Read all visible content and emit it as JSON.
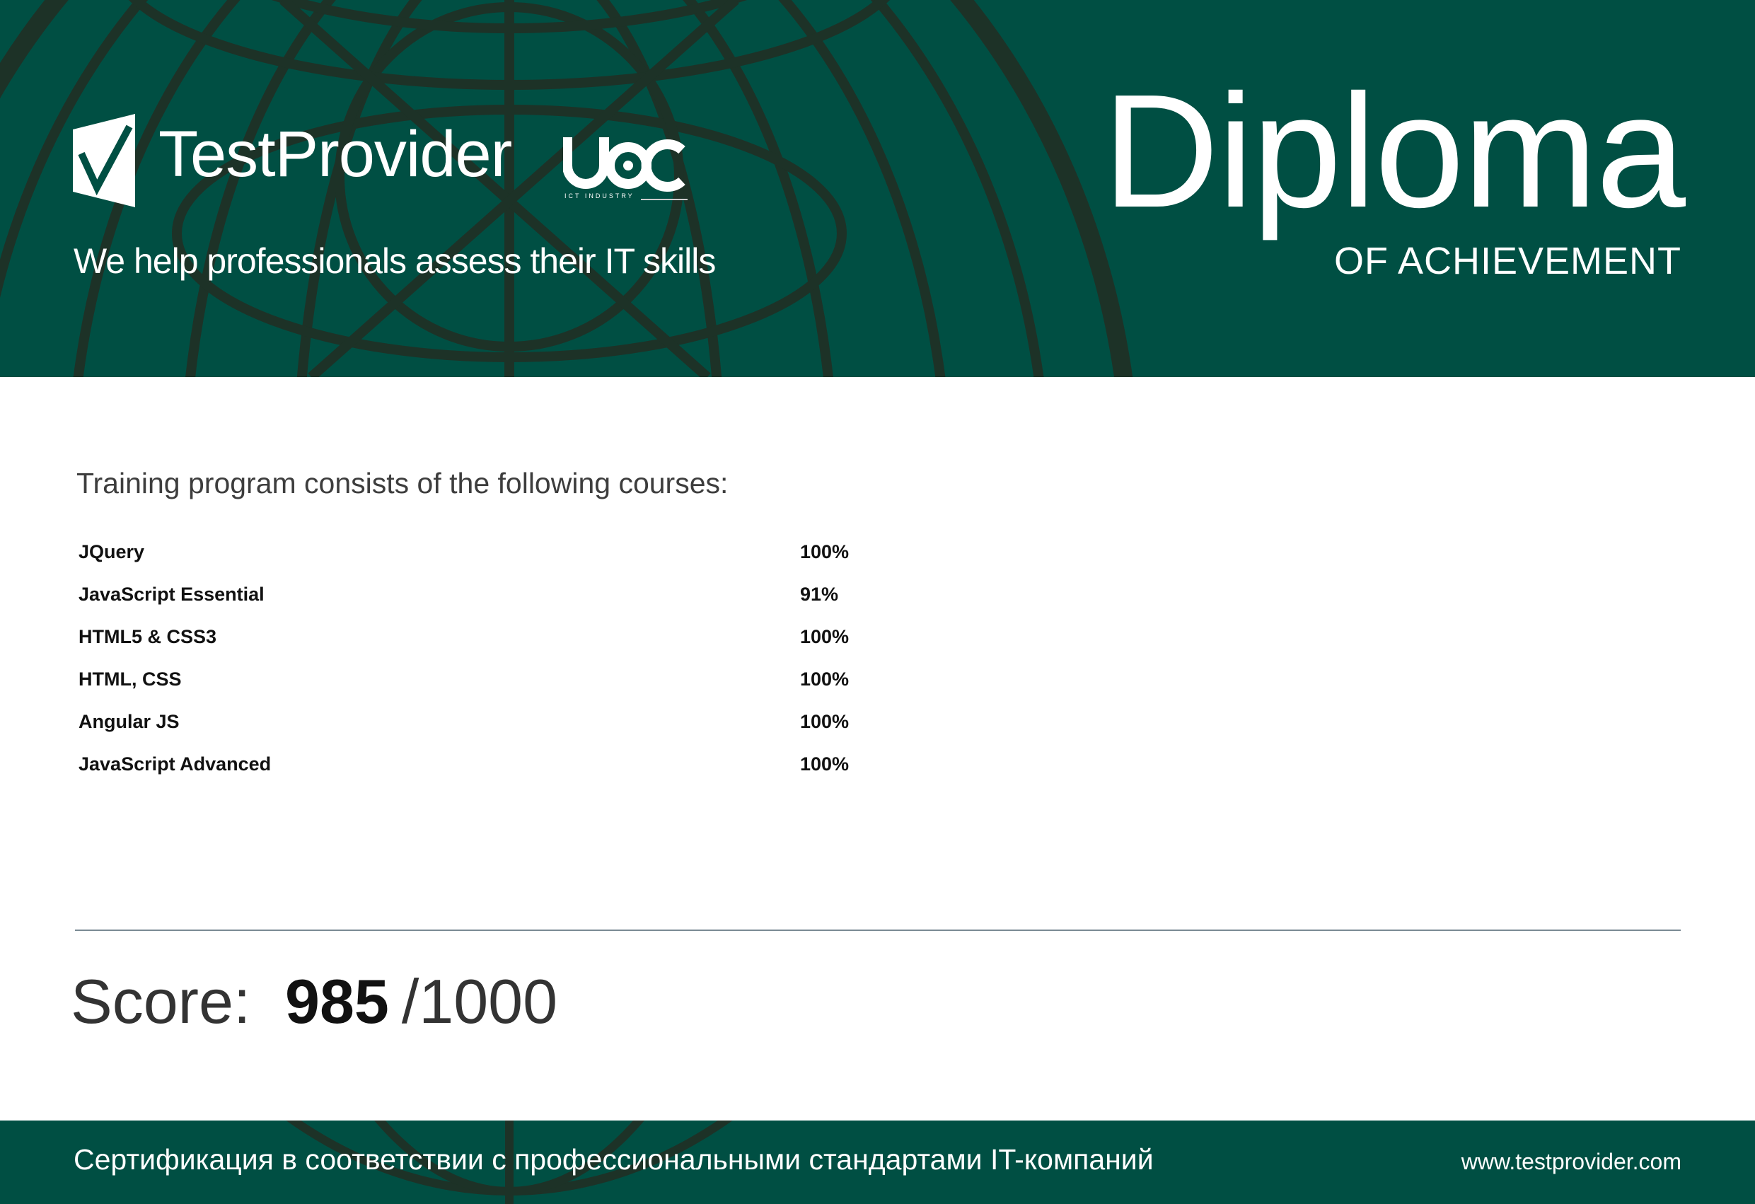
{
  "header": {
    "brand": "TestProvider",
    "partner_logo": "UCC",
    "partner_sub": "ICT INDUSTRY",
    "tagline": "We help professionals assess their IT skills",
    "title": "Diploma",
    "subtitle": "OF ACHIEVEMENT",
    "icons": [
      "checkmark-shield-logo",
      "globe-watermark"
    ]
  },
  "main": {
    "heading": "Training program consists of the following courses:",
    "courses": [
      {
        "name": "JQuery",
        "score": "100%"
      },
      {
        "name": "JavaScript Essential",
        "score": "91%"
      },
      {
        "name": "HTML5 & CSS3",
        "score": "100%"
      },
      {
        "name": "HTML, CSS",
        "score": "100%"
      },
      {
        "name": "Angular JS",
        "score": "100%"
      },
      {
        "name": "JavaScript Advanced",
        "score": "100%"
      }
    ],
    "score_label": "Score:",
    "score_value": "985",
    "score_total": "/1000"
  },
  "footer": {
    "text": "Сертификация в соответствии с профессиональными стандартами IT-компаний",
    "url": "www.testprovider.com"
  },
  "colors": {
    "brand_green": "#004f43",
    "globe_lines": "#1d3227"
  }
}
